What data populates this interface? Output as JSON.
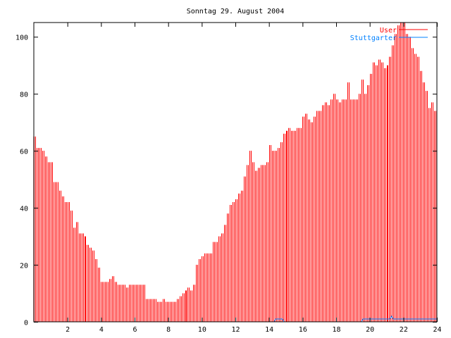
{
  "chart_data": {
    "type": "bar",
    "title": "Sonntag 29. August 2004",
    "xlabel": "",
    "ylabel": "",
    "xlim": [
      0,
      24
    ],
    "ylim": [
      0,
      105
    ],
    "grid": false,
    "legend_position": "top-right",
    "xticks": [
      2,
      4,
      6,
      8,
      10,
      12,
      14,
      16,
      18,
      20,
      22,
      24
    ],
    "yticks": [
      0,
      20,
      40,
      60,
      80,
      100
    ],
    "x_interval_hours": 0.1666667,
    "series": [
      {
        "name": "User",
        "style": "impulses",
        "color": "#ff0000",
        "values": [
          65,
          61,
          61,
          60,
          58,
          56,
          56,
          49,
          49,
          46,
          44,
          42,
          42,
          39,
          33,
          35,
          31,
          31,
          30,
          27,
          26,
          25,
          22,
          19,
          14,
          14,
          14,
          15,
          16,
          14,
          13,
          13,
          13,
          12,
          13,
          13,
          13,
          13,
          13,
          13,
          8,
          8,
          8,
          8,
          7,
          7,
          8,
          7,
          7,
          7,
          7,
          8,
          9,
          10,
          11,
          12,
          11,
          13,
          20,
          22,
          23,
          24,
          24,
          24,
          28,
          28,
          30,
          31,
          34,
          38,
          41,
          42,
          43,
          45,
          46,
          51,
          55,
          60,
          56,
          53,
          54,
          55,
          55,
          56,
          62,
          60,
          60,
          61,
          63,
          66,
          67,
          68,
          67,
          67,
          68,
          68,
          72,
          73,
          71,
          70,
          72,
          74,
          74,
          76,
          77,
          76,
          78,
          80,
          78,
          77,
          78,
          78,
          84,
          78,
          78,
          78,
          80,
          85,
          80,
          83,
          87,
          91,
          90,
          92,
          91,
          89,
          90,
          93,
          97,
          101,
          104,
          106,
          106,
          101,
          100,
          96,
          94,
          93,
          88,
          84,
          81,
          75,
          77,
          74
        ]
      },
      {
        "name": "Stuttgarter",
        "style": "lines",
        "color": "#0080ff",
        "x": [
          0,
          14.3,
          14.4,
          14.8,
          14.9,
          19.5,
          19.6,
          21.2,
          21.3,
          21.4,
          24
        ],
        "y": [
          0,
          0,
          1,
          1,
          0,
          0,
          1,
          1,
          2,
          1,
          1
        ]
      }
    ]
  }
}
